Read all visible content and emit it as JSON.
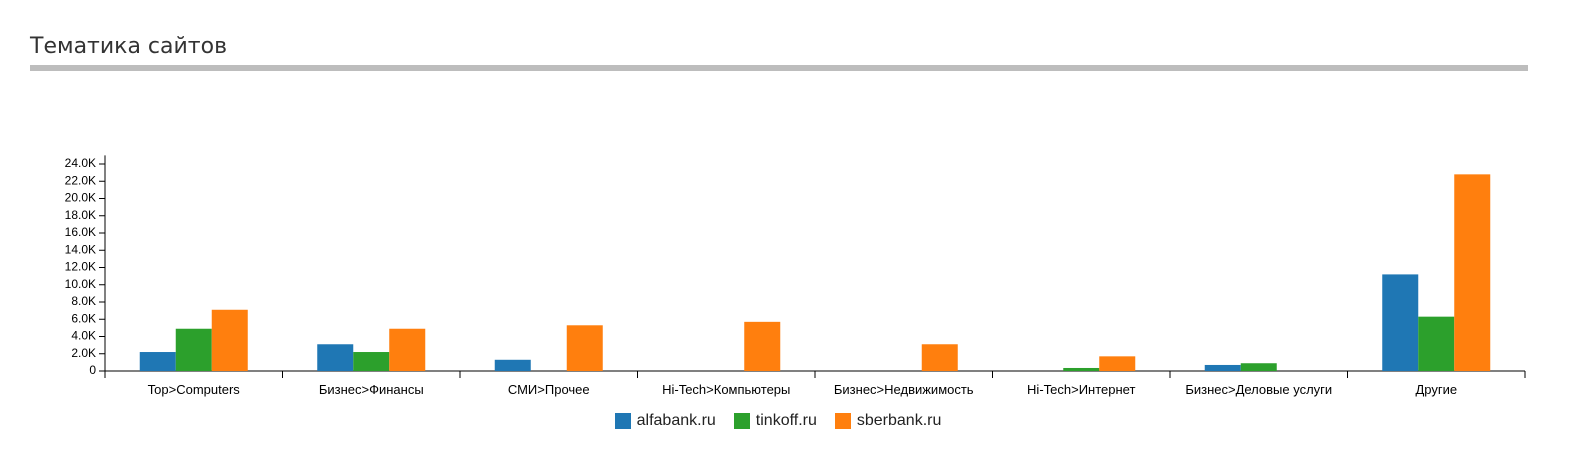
{
  "chart_data": {
    "type": "bar",
    "title": "Тематика сайтов",
    "categories": [
      "Top>Computers",
      "Бизнес>Финансы",
      "СМИ>Прочее",
      "Hi-Tech>Компьютеры",
      "Бизнес>Недвижимость",
      "Hi-Tech>Интернет",
      "Бизнес>Деловые услуги",
      "Другие"
    ],
    "series": [
      {
        "name": "alfabank.ru",
        "color": "#1f77b4",
        "values": [
          2200,
          3100,
          1300,
          0,
          0,
          0,
          700,
          11200
        ]
      },
      {
        "name": "tinkoff.ru",
        "color": "#2ca02c",
        "values": [
          4900,
          2200,
          0,
          0,
          0,
          350,
          900,
          6300
        ]
      },
      {
        "name": "sberbank.ru",
        "color": "#ff7f0e",
        "values": [
          7100,
          4900,
          5300,
          5700,
          3100,
          1700,
          0,
          22800
        ]
      }
    ],
    "ylim": [
      0,
      25000
    ],
    "yticks": [
      0,
      {
        "value": 2000,
        "label": "2.0K"
      },
      {
        "value": 4000,
        "label": "4.0K"
      },
      {
        "value": 6000,
        "label": "6.0K"
      },
      {
        "value": 8000,
        "label": "8.0K"
      },
      {
        "value": 10000,
        "label": "10.0K"
      },
      {
        "value": 12000,
        "label": "12.0K"
      },
      {
        "value": 14000,
        "label": "14.0K"
      },
      {
        "value": 16000,
        "label": "16.0K"
      },
      {
        "value": 18000,
        "label": "18.0K"
      },
      {
        "value": 20000,
        "label": "20.0K"
      },
      {
        "value": 22000,
        "label": "22.0K"
      },
      {
        "value": 24000,
        "label": "24.0K"
      }
    ],
    "grid": false
  }
}
